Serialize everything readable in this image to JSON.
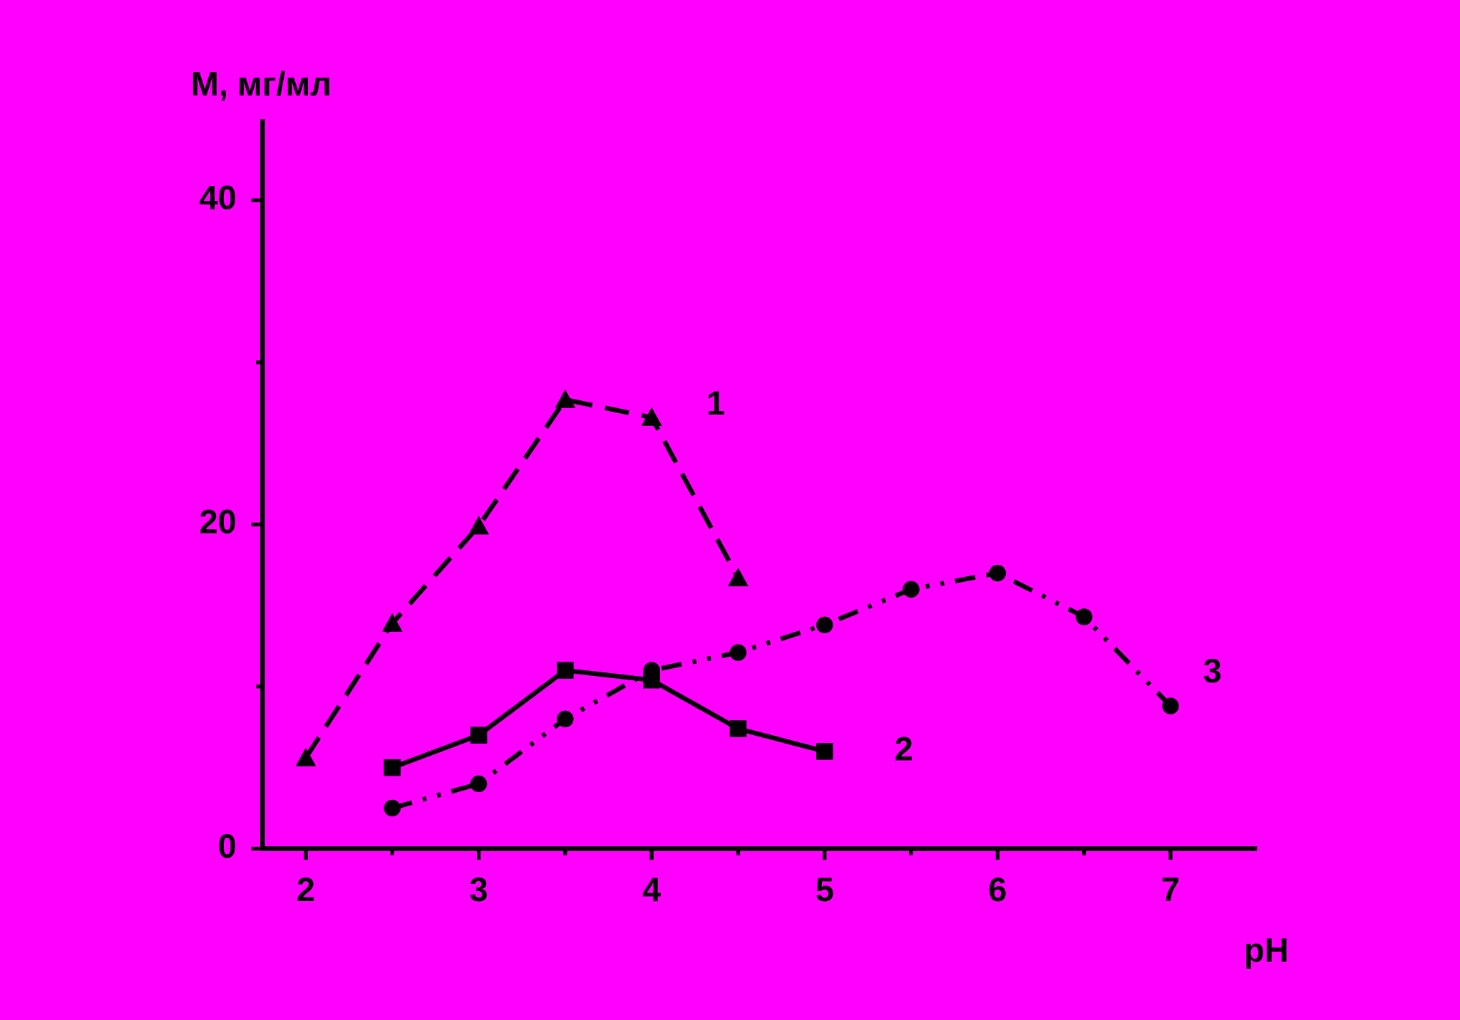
{
  "chart_data": {
    "type": "line",
    "xlabel": "pH",
    "ylabel": "M, мг/мл",
    "xlim": [
      1.75,
      7.5
    ],
    "xticks": [
      2,
      3,
      4,
      5,
      6,
      7
    ],
    "xminor": [
      2.5,
      3.5,
      4.5,
      5.5,
      6.5
    ],
    "ylim": [
      0,
      45
    ],
    "yticks": [
      0,
      20,
      40
    ],
    "yminor": [
      10,
      30
    ],
    "background": "#ff00ff",
    "series": [
      {
        "name": "1",
        "color": "#000000",
        "marker": "triangle",
        "dash": "dash",
        "x": [
          2,
          2.5,
          3,
          3.5,
          4,
          4.5
        ],
        "values": [
          5.6,
          13.9,
          19.9,
          27.7,
          26.6,
          16.7
        ]
      },
      {
        "name": "2",
        "color": "#000000",
        "marker": "square",
        "dash": "solid",
        "x": [
          2.5,
          3,
          3.5,
          4,
          4.5,
          5
        ],
        "values": [
          5.0,
          7.0,
          11.0,
          10.4,
          7.4,
          6.0
        ]
      },
      {
        "name": "3",
        "color": "#000000",
        "marker": "circle",
        "dash": "dashdotdot",
        "x": [
          2.5,
          3,
          3.5,
          4,
          4.5,
          5,
          5.5,
          6,
          6.5,
          7
        ],
        "values": [
          2.5,
          4.0,
          8.0,
          11.0,
          12.1,
          13.8,
          16.0,
          17.0,
          14.3,
          8.8
        ]
      }
    ]
  }
}
